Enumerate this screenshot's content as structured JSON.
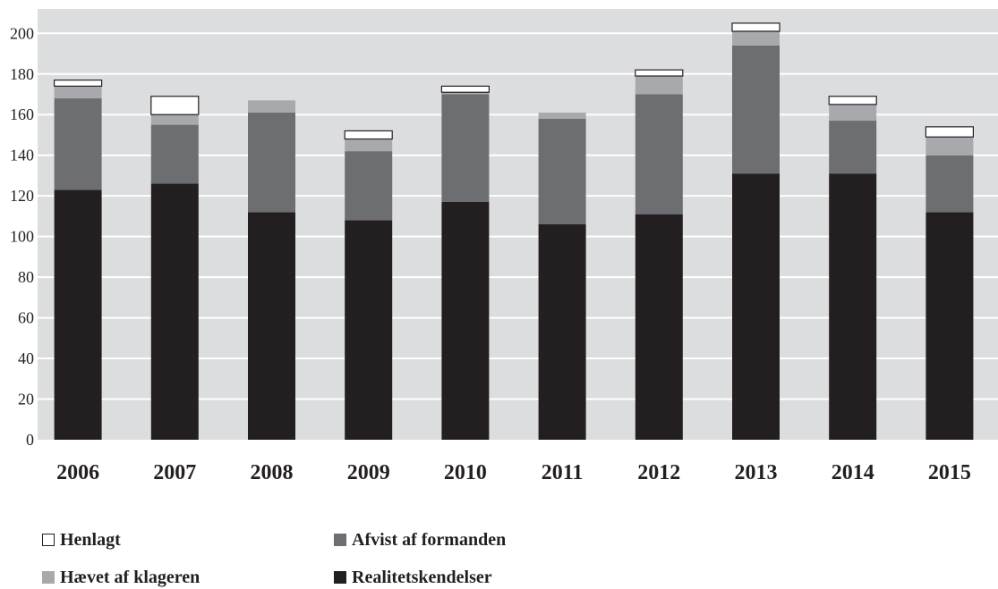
{
  "chart_data": {
    "type": "bar",
    "stacked": true,
    "categories": [
      "2006",
      "2007",
      "2008",
      "2009",
      "2010",
      "2011",
      "2012",
      "2013",
      "2014",
      "2015"
    ],
    "series": [
      {
        "name": "Realitetskendelser",
        "color": "#231f20",
        "values": [
          123,
          126,
          112,
          108,
          117,
          106,
          111,
          131,
          131,
          112
        ]
      },
      {
        "name": "Afvist af formanden",
        "color": "#6d6e71",
        "values": [
          45,
          29,
          49,
          34,
          53,
          52,
          59,
          63,
          26,
          28
        ]
      },
      {
        "name": "Hævet af klageren",
        "color": "#a7a9ac",
        "values": [
          6,
          5,
          6,
          6,
          1,
          3,
          9,
          7,
          8,
          9
        ]
      },
      {
        "name": "Henlagt",
        "color": "#ffffff",
        "outline": "#231f20",
        "values": [
          3,
          9,
          0,
          4,
          3,
          0,
          3,
          4,
          4,
          5
        ]
      }
    ],
    "yticks": [
      0,
      20,
      40,
      60,
      80,
      100,
      120,
      140,
      160,
      180,
      200
    ],
    "ylim": [
      0,
      212
    ],
    "grid": true,
    "grid_color": "#ffffff",
    "plot_background": "#dcdddf",
    "legend": {
      "placement": "bottom-left",
      "columns": 2,
      "order": [
        3,
        1,
        2,
        0
      ]
    }
  }
}
